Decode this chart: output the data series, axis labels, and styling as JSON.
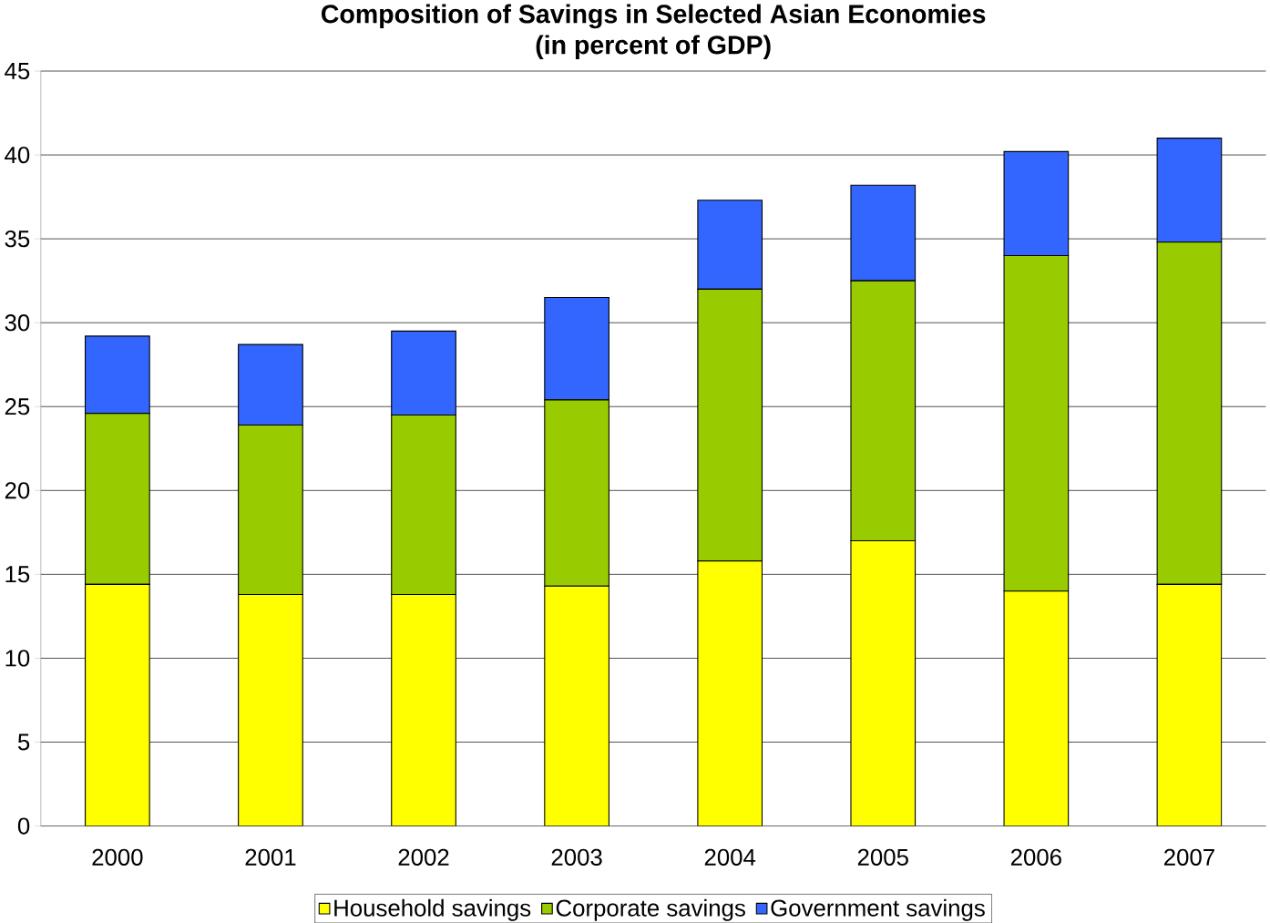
{
  "chart_data": {
    "type": "bar",
    "stacked": true,
    "title": "Composition of Savings in Selected Asian Economies",
    "subtitle": "(in percent of GDP)",
    "categories": [
      "2000",
      "2001",
      "2002",
      "2003",
      "2004",
      "2005",
      "2006",
      "2007"
    ],
    "series": [
      {
        "name": "Household savings",
        "color": "#ffff00",
        "values": [
          14.4,
          13.8,
          13.8,
          14.3,
          15.8,
          17.0,
          14.0,
          14.4
        ]
      },
      {
        "name": "Corporate savings",
        "color": "#99cc00",
        "values": [
          10.2,
          10.1,
          10.7,
          11.1,
          16.2,
          15.5,
          20.0,
          20.4
        ]
      },
      {
        "name": "Government savings",
        "color": "#3366ff",
        "values": [
          4.6,
          4.8,
          5.0,
          6.1,
          5.3,
          5.7,
          6.2,
          6.2
        ]
      }
    ],
    "ylim": [
      0,
      45
    ],
    "yticks": [
      0,
      5,
      10,
      15,
      20,
      25,
      30,
      35,
      40,
      45
    ],
    "grid": "y",
    "legend": "bottom"
  }
}
